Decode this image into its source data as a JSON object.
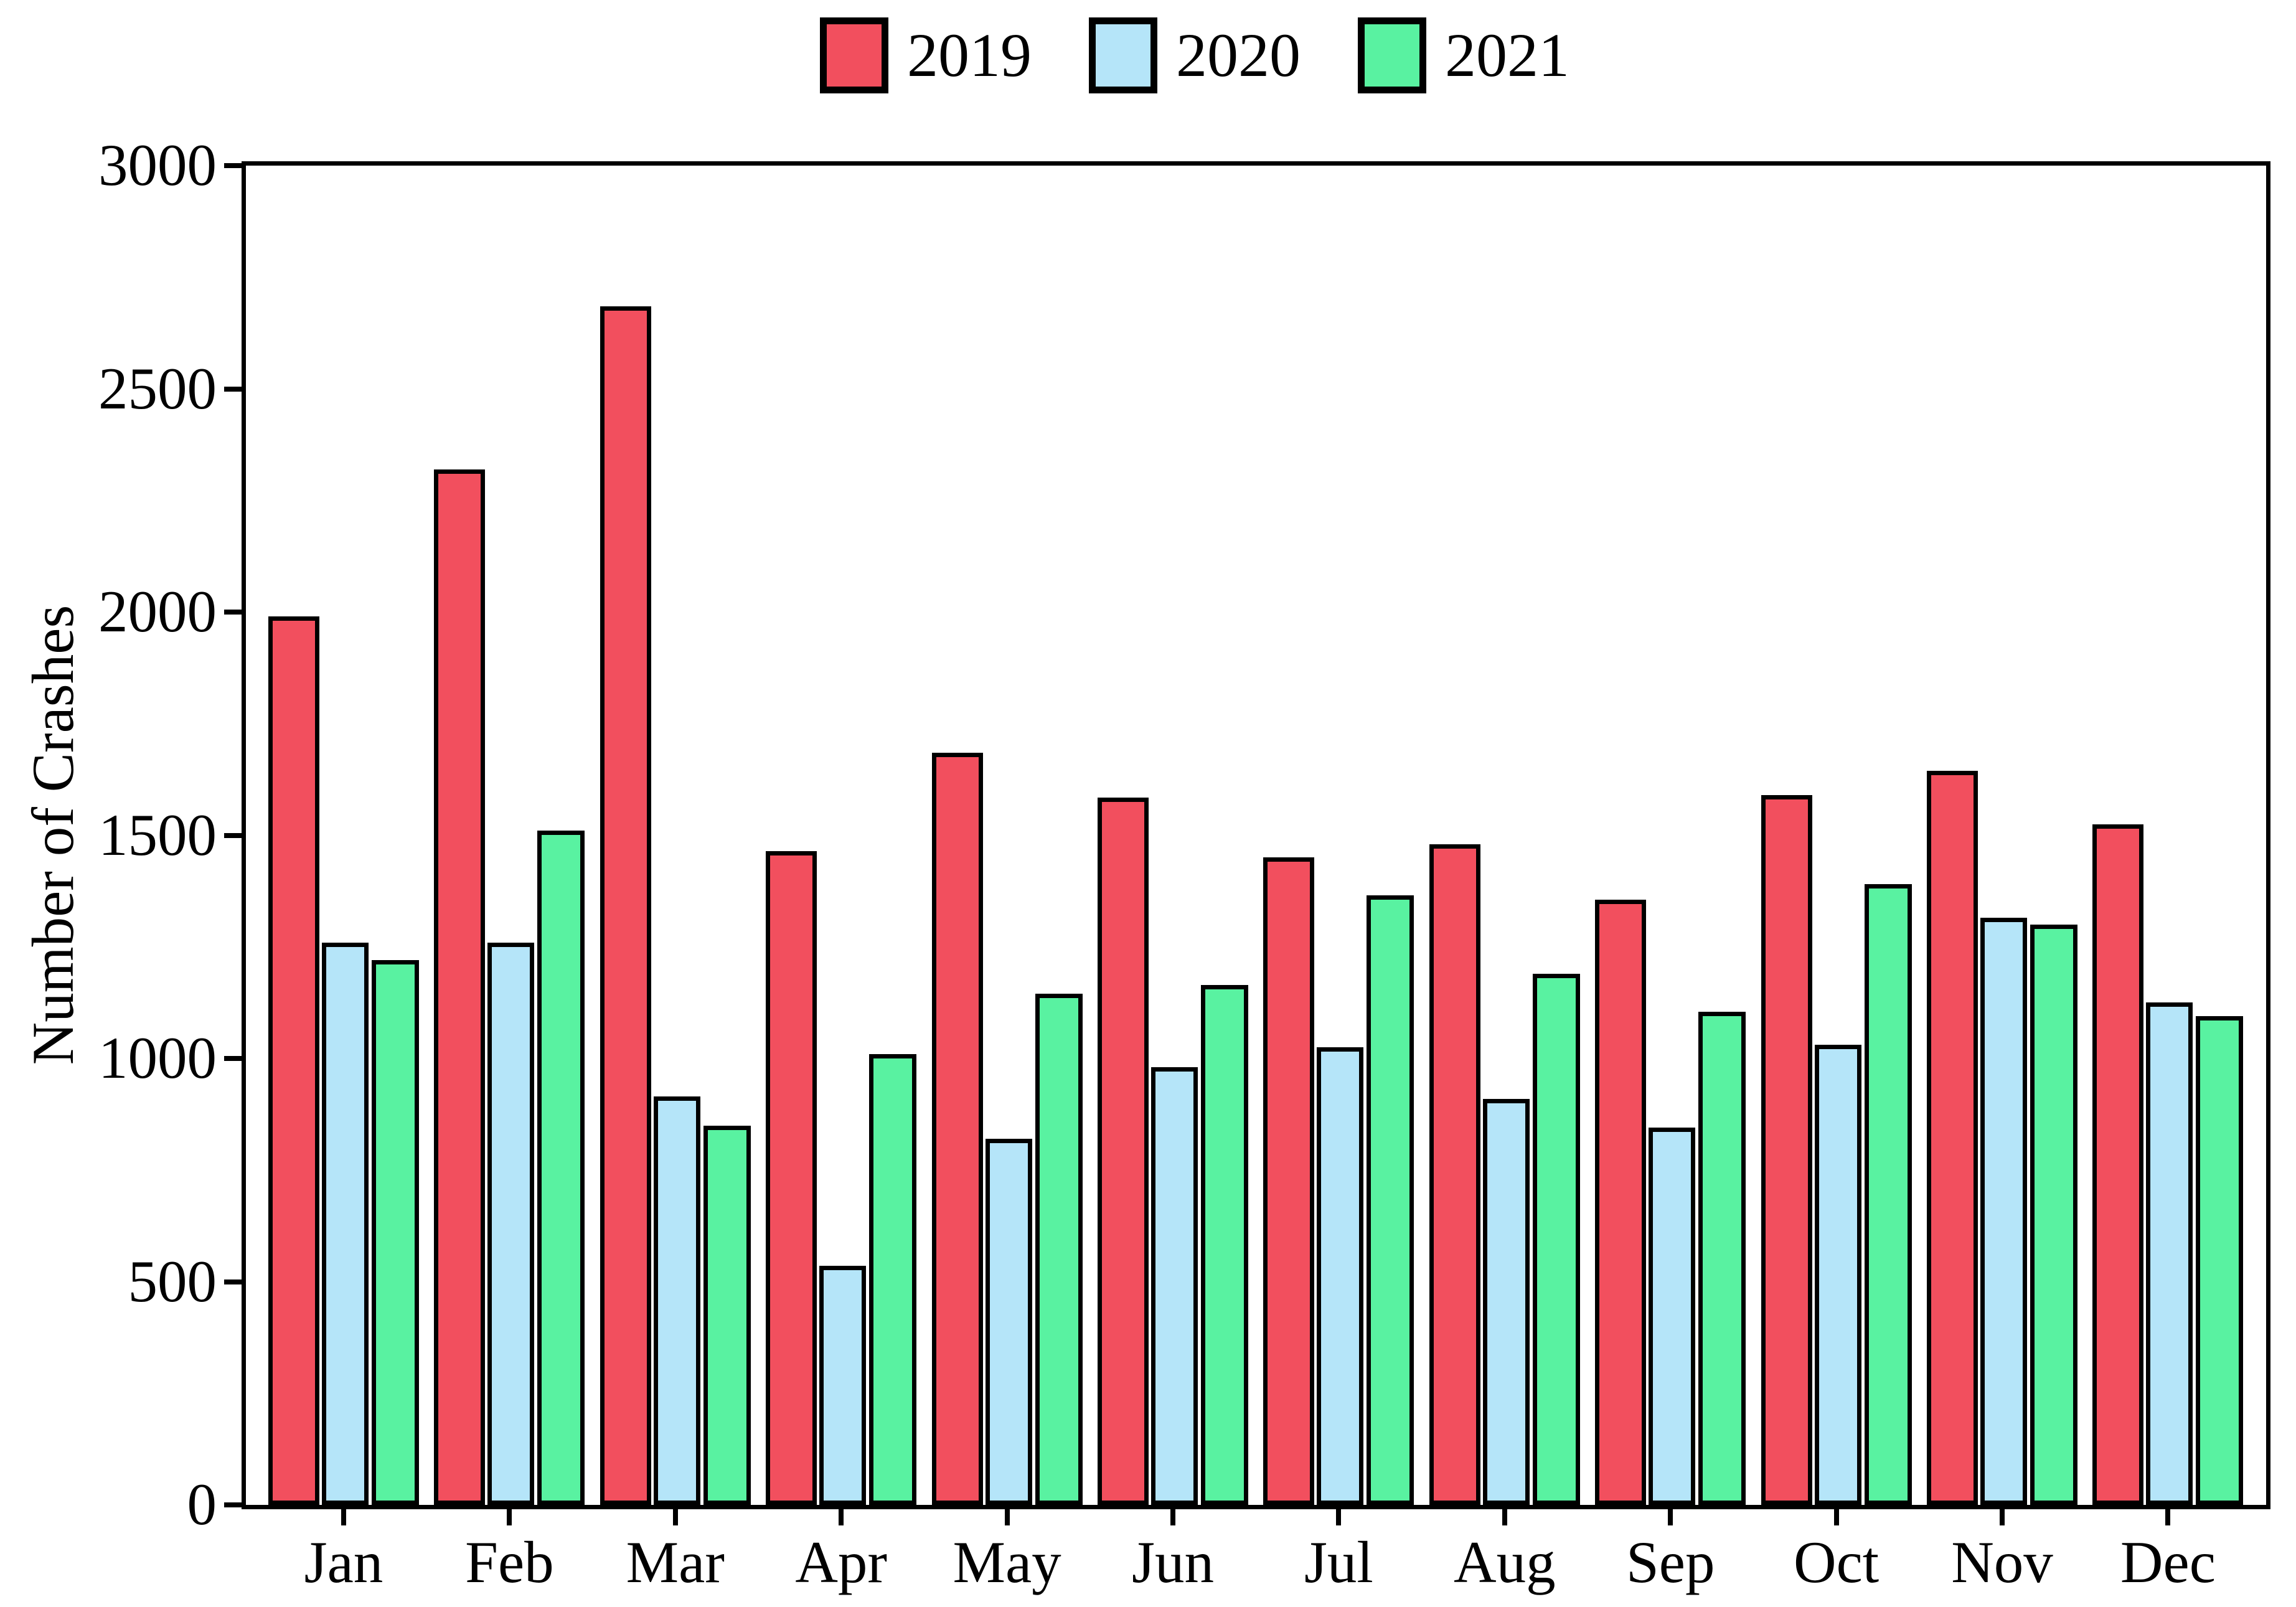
{
  "chart_data": {
    "type": "bar",
    "title": "",
    "xlabel": "",
    "ylabel": "Number of Crashes",
    "ylim": [
      0,
      3000
    ],
    "yticks": [
      0,
      500,
      1000,
      1500,
      2000,
      2500,
      3000
    ],
    "grid": false,
    "legend_position": "top-center",
    "background_color": "#ffffff",
    "bar_border_color": "#000000",
    "categories": [
      "Jan",
      "Feb",
      "Mar",
      "Apr",
      "May",
      "Jun",
      "Jul",
      "Aug",
      "Sep",
      "Oct",
      "Nov",
      "Dec"
    ],
    "series": [
      {
        "name": "2019",
        "color": "#f24f5e",
        "values": [
          1990,
          2320,
          2685,
          1465,
          1685,
          1585,
          1450,
          1480,
          1355,
          1590,
          1645,
          1525
        ]
      },
      {
        "name": "2020",
        "color": "#b5e5f9",
        "values": [
          1260,
          1260,
          915,
          535,
          820,
          980,
          1025,
          910,
          845,
          1030,
          1315,
          1125
        ]
      },
      {
        "name": "2021",
        "color": "#59f2a1",
        "values": [
          1220,
          1510,
          850,
          1010,
          1145,
          1165,
          1365,
          1190,
          1105,
          1390,
          1300,
          1095
        ]
      }
    ]
  }
}
